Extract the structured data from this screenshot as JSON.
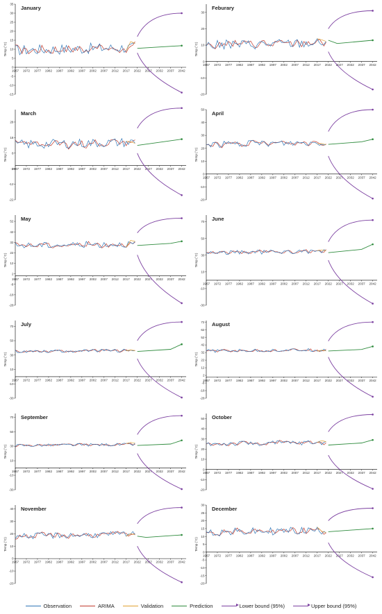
{
  "colors": {
    "observation": "#2e75b6",
    "arima": "#c0392b",
    "validation": "#e0a030",
    "prediction": "#2e8b3d",
    "lower": "#7b3fa0",
    "upper": "#7b3fa0"
  },
  "legend": [
    {
      "label": "Observation",
      "key": "observation",
      "arrow": false
    },
    {
      "label": "ARIMA",
      "key": "arima",
      "arrow": false
    },
    {
      "label": "Validation",
      "key": "validation",
      "arrow": false
    },
    {
      "label": "Prediction",
      "key": "prediction",
      "arrow": false
    },
    {
      "label": "Lower bound (95%)",
      "key": "lower",
      "arrow": true
    },
    {
      "label": "Upper bound (95%)",
      "key": "upper",
      "arrow": true
    }
  ],
  "chart_data": [
    {
      "type": "line",
      "title": "January",
      "ylabel": "Temp (°C)",
      "yticks": [
        -15,
        -10,
        -5,
        0,
        5,
        10,
        15,
        20,
        25,
        30,
        35
      ],
      "ylim": [
        -15,
        35
      ],
      "xticks": [
        "1967",
        "1972",
        "1977",
        "1982",
        "1987",
        "1992",
        "1997",
        "2002",
        "2007",
        "2012",
        "2017",
        "2022",
        "2027",
        "2032",
        "2037",
        "2042"
      ],
      "xlim": [
        1967,
        2044
      ],
      "obs_mean": 9.5,
      "obs_amp": 3,
      "pred": [
        [
          2022,
          10.5
        ],
        [
          2042,
          12
        ]
      ],
      "upper": [
        [
          2022,
          17
        ],
        [
          2042,
          30
        ]
      ],
      "lower": [
        [
          2022,
          8
        ],
        [
          2042,
          -14
        ]
      ]
    },
    {
      "type": "line",
      "title": "Feburary",
      "ylabel": "Temp (°C)",
      "yticks": [
        -20,
        -10,
        0,
        10,
        20,
        30
      ],
      "ylim": [
        -20,
        35
      ],
      "xticks": [
        "1967",
        "1972",
        "1977",
        "1982",
        "1987",
        "1992",
        "1997",
        "2002",
        "2007",
        "2012",
        "2017",
        "2022",
        "2027",
        "2032",
        "2037",
        "2042"
      ],
      "xlim": [
        1967,
        2044
      ],
      "obs_mean": 10,
      "obs_amp": 3,
      "pred": [
        [
          2022,
          13
        ],
        [
          2026,
          11
        ],
        [
          2042,
          13
        ]
      ],
      "upper": [
        [
          2022,
          20
        ],
        [
          2042,
          31
        ]
      ],
      "lower": [
        [
          2022,
          6
        ],
        [
          2042,
          -17
        ]
      ]
    },
    {
      "type": "line",
      "title": "March",
      "ylabel": "Temp (°C)",
      "yticks": [
        -22,
        -12,
        -2,
        8,
        18,
        28
      ],
      "ylim": [
        -22,
        36
      ],
      "xticks": [
        "1967",
        "1972",
        "1977",
        "1982",
        "1987",
        "1992",
        "1997",
        "2002",
        "2007",
        "2012",
        "2017",
        "2022",
        "2027",
        "2032",
        "2037",
        "2042"
      ],
      "xlim": [
        1967,
        2044
      ],
      "obs_mean": 13.5,
      "obs_amp": 3,
      "pred": [
        [
          2022,
          13
        ],
        [
          2042,
          17
        ]
      ],
      "upper": [
        [
          2022,
          24
        ],
        [
          2042,
          37
        ]
      ],
      "lower": [
        [
          2022,
          8
        ],
        [
          2042,
          -19
        ]
      ]
    },
    {
      "type": "line",
      "title": "April",
      "ylabel": "Temp (°C)",
      "yticks": [
        -20,
        -10,
        0,
        10,
        20,
        30,
        40,
        50
      ],
      "ylim": [
        -20,
        50
      ],
      "xticks": [
        "1967",
        "1972",
        "1977",
        "1982",
        "1987",
        "1992",
        "1997",
        "2002",
        "2007",
        "2012",
        "2017",
        "2022",
        "2027",
        "2032",
        "2037",
        "2042"
      ],
      "xlim": [
        1967,
        2044
      ],
      "obs_mean": 23,
      "obs_amp": 2.5,
      "pred": [
        [
          2022,
          23
        ],
        [
          2037,
          25
        ],
        [
          2042,
          27
        ]
      ],
      "upper": [
        [
          2022,
          33
        ],
        [
          2042,
          50
        ]
      ],
      "lower": [
        [
          2022,
          14
        ],
        [
          2042,
          -19
        ]
      ]
    },
    {
      "type": "line",
      "title": "May",
      "ylabel": "Temp (°C)",
      "yticks": [
        -28,
        -18,
        -8,
        2,
        12,
        22,
        32,
        42,
        52
      ],
      "ylim": [
        -28,
        58
      ],
      "xticks": [
        "1967",
        "1972",
        "1977",
        "1982",
        "1987",
        "1992",
        "1997",
        "2002",
        "2007",
        "2012",
        "2017",
        "2022",
        "2027",
        "2032",
        "2037",
        "2042"
      ],
      "xlim": [
        1967,
        2044
      ],
      "obs_mean": 29,
      "obs_amp": 3,
      "pred": [
        [
          2022,
          29
        ],
        [
          2037,
          31
        ],
        [
          2042,
          33
        ]
      ],
      "upper": [
        [
          2022,
          41
        ],
        [
          2042,
          55
        ]
      ],
      "lower": [
        [
          2022,
          20
        ],
        [
          2042,
          -26
        ]
      ]
    },
    {
      "type": "line",
      "title": "June",
      "ylabel": "Temp (°C)",
      "yticks": [
        -30,
        -10,
        10,
        30,
        50,
        70
      ],
      "ylim": [
        -30,
        78
      ],
      "xticks": [
        "1967",
        "1972",
        "1977",
        "1982",
        "1987",
        "1992",
        "1997",
        "2002",
        "2007",
        "2012",
        "2017",
        "2022",
        "2027",
        "2032",
        "2037",
        "2042"
      ],
      "xlim": [
        1967,
        2044
      ],
      "obs_mean": 33,
      "obs_amp": 2.5,
      "pred": [
        [
          2022,
          33
        ],
        [
          2037,
          37
        ],
        [
          2042,
          43
        ]
      ],
      "upper": [
        [
          2022,
          46
        ],
        [
          2042,
          72
        ]
      ],
      "lower": [
        [
          2022,
          24
        ],
        [
          2042,
          -28
        ]
      ]
    },
    {
      "type": "line",
      "title": "July",
      "ylabel": "Temp (°C)",
      "yticks": [
        -30,
        -10,
        10,
        30,
        50,
        70
      ],
      "ylim": [
        -30,
        78
      ],
      "xticks": [
        "1967",
        "1972",
        "1977",
        "1982",
        "1987",
        "1992",
        "1997",
        "2002",
        "2007",
        "2012",
        "2017",
        "2022",
        "2027",
        "2032",
        "2037",
        "2042"
      ],
      "xlim": [
        1967,
        2044
      ],
      "obs_mean": 35,
      "obs_amp": 2,
      "pred": [
        [
          2022,
          35
        ],
        [
          2037,
          38
        ],
        [
          2042,
          45
        ]
      ],
      "upper": [
        [
          2022,
          50
        ],
        [
          2042,
          76
        ]
      ],
      "lower": [
        [
          2022,
          25
        ],
        [
          2042,
          -29
        ]
      ]
    },
    {
      "type": "line",
      "title": "August",
      "ylabel": "Temp (°C)",
      "yticks": [
        -28,
        -18,
        -8,
        2,
        12,
        22,
        32,
        42,
        52,
        62,
        72
      ],
      "ylim": [
        -28,
        74
      ],
      "xticks": [
        "1967",
        "1972",
        "1977",
        "1982",
        "1987",
        "1992",
        "1997",
        "2002",
        "2007",
        "2012",
        "2017",
        "2022",
        "2027",
        "2032",
        "2037",
        "2042"
      ],
      "xlim": [
        1967,
        2044
      ],
      "obs_mean": 34,
      "obs_amp": 2,
      "pred": [
        [
          2022,
          34
        ],
        [
          2037,
          36
        ],
        [
          2042,
          40
        ]
      ],
      "upper": [
        [
          2022,
          47
        ],
        [
          2042,
          72
        ]
      ],
      "lower": [
        [
          2022,
          26
        ],
        [
          2042,
          -26
        ]
      ]
    },
    {
      "type": "line",
      "title": "September",
      "ylabel": "Temp (°C)",
      "yticks": [
        -30,
        -10,
        10,
        30,
        50,
        70
      ],
      "ylim": [
        -30,
        75
      ],
      "xticks": [
        "1967",
        "1972",
        "1977",
        "1982",
        "1987",
        "1992",
        "1997",
        "2002",
        "2007",
        "2012",
        "2017",
        "2022",
        "2027",
        "2032",
        "2037",
        "2042"
      ],
      "xlim": [
        1967,
        2044
      ],
      "obs_mean": 31,
      "obs_amp": 2,
      "pred": [
        [
          2022,
          31
        ],
        [
          2037,
          33
        ],
        [
          2042,
          38
        ]
      ],
      "upper": [
        [
          2022,
          46
        ],
        [
          2042,
          72
        ]
      ],
      "lower": [
        [
          2022,
          20
        ],
        [
          2042,
          -29
        ]
      ]
    },
    {
      "type": "line",
      "title": "October",
      "ylabel": "Temp (°C)",
      "yticks": [
        -20,
        -10,
        0,
        10,
        20,
        30,
        40,
        50
      ],
      "ylim": [
        -20,
        55
      ],
      "xticks": [
        "1967",
        "1972",
        "1977",
        "1982",
        "1987",
        "1992",
        "1997",
        "2002",
        "2007",
        "2012",
        "2017",
        "2022",
        "2027",
        "2032",
        "2037",
        "2042"
      ],
      "xlim": [
        1967,
        2044
      ],
      "obs_mean": 25,
      "obs_amp": 2.5,
      "pred": [
        [
          2022,
          24
        ],
        [
          2037,
          26
        ],
        [
          2042,
          29
        ]
      ],
      "upper": [
        [
          2022,
          37
        ],
        [
          2042,
          54
        ]
      ],
      "lower": [
        [
          2022,
          14
        ],
        [
          2042,
          -19
        ]
      ]
    },
    {
      "type": "line",
      "title": "November",
      "ylabel": "Temp (°C)",
      "yticks": [
        -20,
        -10,
        0,
        10,
        20,
        30,
        40
      ],
      "ylim": [
        -20,
        43
      ],
      "xticks": [
        "1967",
        "1972",
        "1977",
        "1982",
        "1987",
        "1992",
        "1997",
        "2002",
        "2007",
        "2012",
        "2017",
        "2022",
        "2027",
        "2032",
        "2037",
        "2042"
      ],
      "xlim": [
        1967,
        2044
      ],
      "obs_mean": 18,
      "obs_amp": 2.5,
      "pred": [
        [
          2022,
          18
        ],
        [
          2026,
          17
        ],
        [
          2042,
          19
        ]
      ],
      "upper": [
        [
          2022,
          28
        ],
        [
          2042,
          41
        ]
      ],
      "lower": [
        [
          2022,
          10
        ],
        [
          2042,
          -19
        ]
      ]
    },
    {
      "type": "line",
      "title": "December",
      "ylabel": "Temp (°C)",
      "yticks": [
        -20,
        -15,
        -10,
        -5,
        0,
        5,
        10,
        15,
        20,
        25,
        30
      ],
      "ylim": [
        -20,
        30
      ],
      "xticks": [
        "1967",
        "1972",
        "1977",
        "1982",
        "1987",
        "1992",
        "1997",
        "2002",
        "2007",
        "2012",
        "2017",
        "2022",
        "2027",
        "2032",
        "2037",
        "2042"
      ],
      "xlim": [
        1967,
        2044
      ],
      "obs_mean": 12.5,
      "obs_amp": 2.5,
      "pred": [
        [
          2022,
          13
        ],
        [
          2042,
          15
        ]
      ],
      "upper": [
        [
          2022,
          20
        ],
        [
          2042,
          28
        ]
      ],
      "lower": [
        [
          2022,
          6
        ],
        [
          2042,
          -16
        ]
      ]
    }
  ]
}
